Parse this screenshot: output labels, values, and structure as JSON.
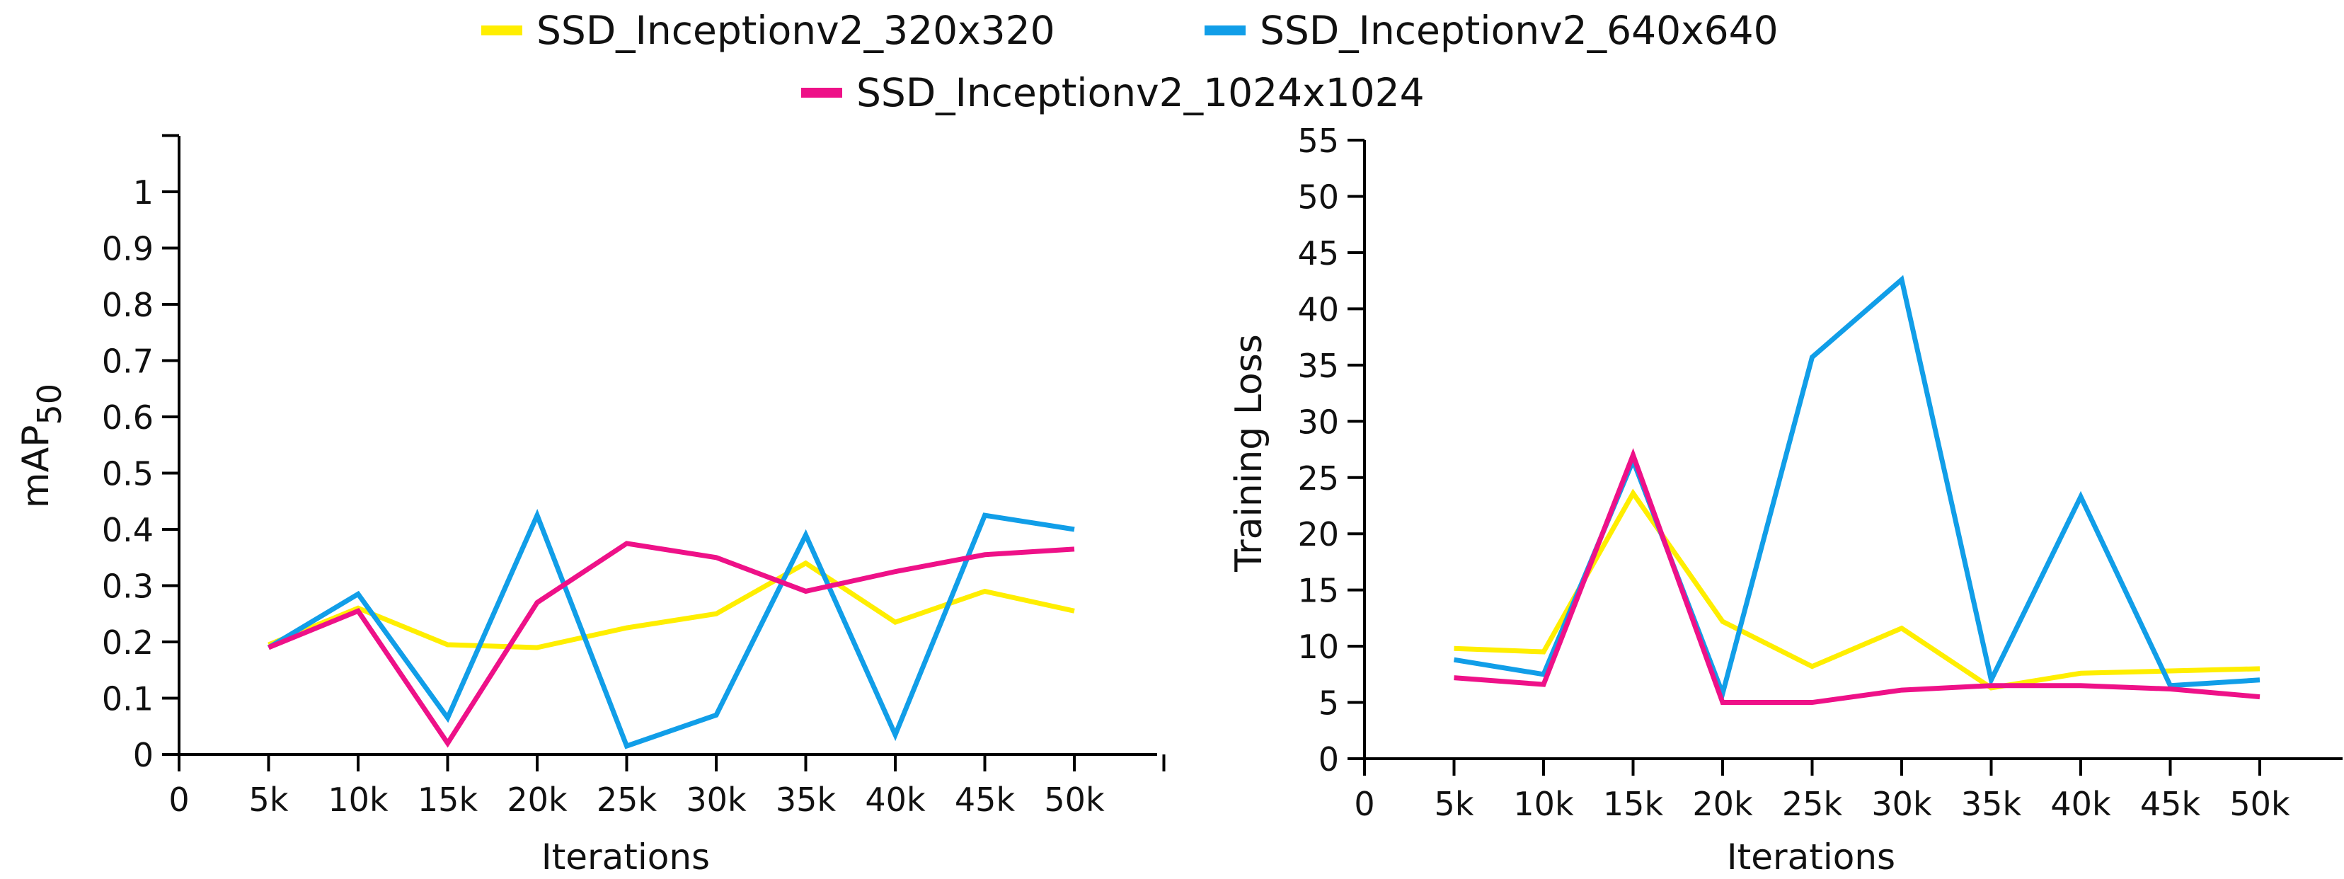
{
  "legend": {
    "items": [
      {
        "label": "SSD_Inceptionv2_320x320",
        "color": "#ffee00"
      },
      {
        "label": "SSD_Inceptionv2_640x640",
        "color": "#119ee8"
      },
      {
        "label": "SSD_Inceptionv2_1024x1024",
        "color": "#ee1188"
      }
    ]
  },
  "chart_data": [
    {
      "type": "line",
      "id": "map",
      "title": "",
      "xlabel": "Iterations",
      "ylabel": "mAP",
      "ylabel_sub": "50",
      "categories": [
        "5k",
        "10k",
        "15k",
        "20k",
        "25k",
        "30k",
        "35k",
        "40k",
        "45k",
        "50k"
      ],
      "x_ticks": [
        "0",
        "5k",
        "10k",
        "15k",
        "20k",
        "25k",
        "30k",
        "35k",
        "40k",
        "45k",
        "50k"
      ],
      "y_ticks": [
        "0",
        "0.1",
        "0.2",
        "0.3",
        "0.4",
        "0.5",
        "0.6",
        "0.7",
        "0.8",
        "0.9",
        "1"
      ],
      "ylim": [
        0,
        1.1
      ],
      "grid": false,
      "series": [
        {
          "name": "SSD_Inceptionv2_320x320",
          "color": "#ffee00",
          "values": [
            0.195,
            0.26,
            0.195,
            0.19,
            0.225,
            0.25,
            0.34,
            0.235,
            0.29,
            0.255
          ]
        },
        {
          "name": "SSD_Inceptionv2_640x640",
          "color": "#119ee8",
          "values": [
            0.19,
            0.285,
            0.065,
            0.425,
            0.015,
            0.07,
            0.39,
            0.035,
            0.425,
            0.4
          ]
        },
        {
          "name": "SSD_Inceptionv2_1024x1024",
          "color": "#ee1188",
          "values": [
            0.19,
            0.255,
            0.02,
            0.27,
            0.375,
            0.35,
            0.29,
            0.325,
            0.355,
            0.365
          ]
        }
      ]
    },
    {
      "type": "line",
      "id": "loss",
      "title": "",
      "xlabel": "Iterations",
      "ylabel": "Training Loss",
      "ylabel_sub": "",
      "categories": [
        "5k",
        "10k",
        "15k",
        "20k",
        "25k",
        "30k",
        "35k",
        "40k",
        "45k",
        "50k"
      ],
      "x_ticks": [
        "0",
        "5k",
        "10k",
        "15k",
        "20k",
        "25k",
        "30k",
        "35k",
        "40k",
        "45k",
        "50k"
      ],
      "y_ticks": [
        "0",
        "5",
        "10",
        "15",
        "20",
        "25",
        "30",
        "35",
        "40",
        "45",
        "50",
        "55"
      ],
      "ylim": [
        0,
        55
      ],
      "grid": false,
      "series": [
        {
          "name": "SSD_Inceptionv2_320x320",
          "color": "#ffee00",
          "values": [
            9.8,
            9.5,
            23.6,
            12.2,
            8.2,
            11.6,
            6.3,
            7.6,
            7.8,
            8.0
          ]
        },
        {
          "name": "SSD_Inceptionv2_640x640",
          "color": "#119ee8",
          "values": [
            8.8,
            7.5,
            26.5,
            5.8,
            35.7,
            42.6,
            7.0,
            23.3,
            6.5,
            7.0
          ]
        },
        {
          "name": "SSD_Inceptionv2_1024x1024",
          "color": "#ee1188",
          "values": [
            7.2,
            6.6,
            27.0,
            5.0,
            5.0,
            6.1,
            6.5,
            6.5,
            6.2,
            5.5
          ]
        }
      ]
    }
  ]
}
